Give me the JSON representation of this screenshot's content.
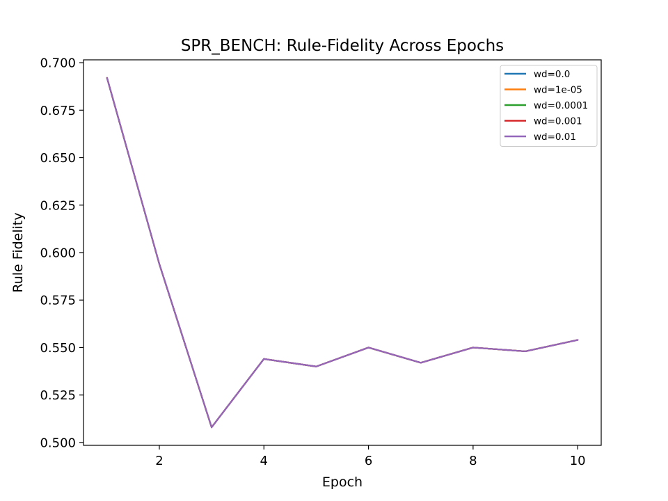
{
  "chart_data": {
    "type": "line",
    "title": "SPR_BENCH: Rule-Fidelity Across Epochs",
    "xlabel": "Epoch",
    "ylabel": "Rule Fidelity",
    "xlim": [
      0.55,
      10.45
    ],
    "ylim": [
      0.4985,
      0.7015
    ],
    "xticks": [
      2,
      4,
      6,
      8,
      10
    ],
    "yticks": [
      0.5,
      0.525,
      0.55,
      0.575,
      0.6,
      0.625,
      0.65,
      0.675,
      0.7
    ],
    "ytick_labels": [
      "0.500",
      "0.525",
      "0.550",
      "0.575",
      "0.600",
      "0.625",
      "0.650",
      "0.675",
      "0.700"
    ],
    "grid": false,
    "legend_position": "top-right",
    "x": [
      1,
      2,
      3,
      4,
      5,
      6,
      7,
      8,
      9,
      10
    ],
    "series": [
      {
        "name": "wd=0.0",
        "color": "#1f77b4",
        "values": [
          0.692,
          0.594,
          0.508,
          0.544,
          0.54,
          0.55,
          0.542,
          0.55,
          0.548,
          0.554
        ]
      },
      {
        "name": "wd=1e-05",
        "color": "#ff7f0e",
        "values": [
          0.692,
          0.594,
          0.508,
          0.544,
          0.54,
          0.55,
          0.542,
          0.55,
          0.548,
          0.554
        ]
      },
      {
        "name": "wd=0.0001",
        "color": "#2ca02c",
        "values": [
          0.692,
          0.594,
          0.508,
          0.544,
          0.54,
          0.55,
          0.542,
          0.55,
          0.548,
          0.554
        ]
      },
      {
        "name": "wd=0.001",
        "color": "#d62728",
        "values": [
          0.692,
          0.594,
          0.508,
          0.544,
          0.54,
          0.55,
          0.542,
          0.55,
          0.548,
          0.554
        ]
      },
      {
        "name": "wd=0.01",
        "color": "#9467bd",
        "values": [
          0.692,
          0.594,
          0.508,
          0.544,
          0.54,
          0.55,
          0.542,
          0.55,
          0.548,
          0.554
        ]
      }
    ]
  }
}
